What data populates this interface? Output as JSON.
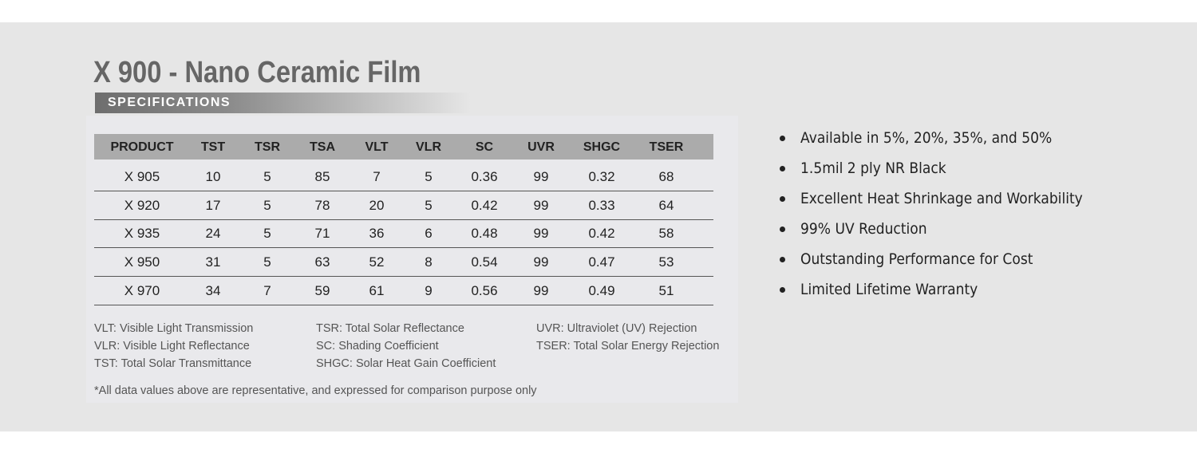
{
  "header": {
    "title": "X 900 - Nano Ceramic Film",
    "badge": "SPECIFICATIONS"
  },
  "table": {
    "columns": [
      "PRODUCT",
      "TST",
      "TSR",
      "TSA",
      "VLT",
      "VLR",
      "SC",
      "UVR",
      "SHGC",
      "TSER"
    ],
    "rows": [
      [
        "X 905",
        10,
        5,
        85,
        7,
        5,
        0.36,
        99,
        0.32,
        68
      ],
      [
        "X 920",
        17,
        5,
        78,
        20,
        5,
        0.42,
        99,
        0.33,
        64
      ],
      [
        "X 935",
        24,
        5,
        71,
        36,
        6,
        0.48,
        99,
        0.42,
        58
      ],
      [
        "X 950",
        31,
        5,
        63,
        52,
        8,
        0.54,
        99,
        0.47,
        53
      ],
      [
        "X 970",
        34,
        7,
        59,
        61,
        9,
        0.56,
        99,
        0.49,
        51
      ]
    ]
  },
  "legend": [
    [
      "VLT: Visible Light Transmission",
      "VLR: Visible Light Reflectance",
      "TST: Total Solar Transmittance"
    ],
    [
      "TSR: Total Solar Reflectance",
      "SC: Shading Coefficient",
      "SHGC: Solar Heat Gain Coefficient"
    ],
    [
      "UVR: Ultraviolet (UV) Rejection",
      "TSER: Total Solar Energy Rejection"
    ]
  ],
  "footnote": "*All data values above are representative, and expressed for comparison purpose only",
  "features": [
    "Available in 5%, 20%, 35%, and 50%",
    "1.5mil 2 ply NR Black",
    "Excellent Heat Shrinkage and Workability",
    "99% UV Reduction",
    "Outstanding Performance for Cost",
    "Limited Lifetime Warranty"
  ]
}
